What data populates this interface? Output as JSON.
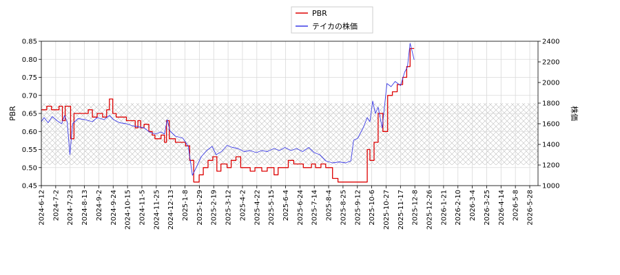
{
  "chart_data": {
    "type": "line",
    "ylabel": "PBR",
    "ylabel_right": "株価",
    "ylim": [
      0.45,
      0.85
    ],
    "ylim_right": [
      1000,
      2400
    ],
    "yticks": [
      "0.45",
      "0.50",
      "0.55",
      "0.60",
      "0.65",
      "0.70",
      "0.75",
      "0.80",
      "0.85"
    ],
    "yticks_right": [
      "1000",
      "1200",
      "1400",
      "1600",
      "1800",
      "2000",
      "2200",
      "2400"
    ],
    "xlim": [
      "2024-06-12",
      "2026-06-12"
    ],
    "xticks": [
      "2024-6-12",
      "2024-7-2",
      "2024-7-23",
      "2024-8-13",
      "2024-9-2",
      "2024-9-24",
      "2024-10-15",
      "2024-11-5",
      "2024-11-25",
      "2024-12-13",
      "2025-1-8",
      "2025-1-29",
      "2025-2-19",
      "2025-3-12",
      "2025-4-2",
      "2025-4-22",
      "2025-5-15",
      "2025-6-4",
      "2025-6-24",
      "2025-7-14",
      "2025-8-4",
      "2025-8-25",
      "2025-9-12",
      "2025-10-6",
      "2025-10-27",
      "2025-11-17",
      "2025-12-8",
      "2025-12-26",
      "2026-1-21",
      "2026-2-10",
      "2026-3-4",
      "2026-3-25",
      "2026-4-14",
      "2026-5-8",
      "2026-5-28"
    ],
    "band_right": [
      1200,
      1800
    ],
    "grid": true,
    "legend_position": "top-center",
    "series": [
      {
        "name": "PBR",
        "axis": "left",
        "color": "#dd0000",
        "step": true,
        "points": [
          [
            "2024-06-12",
            0.66
          ],
          [
            "2024-06-20",
            0.67
          ],
          [
            "2024-06-27",
            0.66
          ],
          [
            "2024-07-08",
            0.67
          ],
          [
            "2024-07-13",
            0.63
          ],
          [
            "2024-07-17",
            0.67
          ],
          [
            "2024-07-25",
            0.58
          ],
          [
            "2024-07-30",
            0.65
          ],
          [
            "2024-08-20",
            0.66
          ],
          [
            "2024-08-26",
            0.64
          ],
          [
            "2024-09-02",
            0.65
          ],
          [
            "2024-09-10",
            0.64
          ],
          [
            "2024-09-16",
            0.66
          ],
          [
            "2024-09-20",
            0.69
          ],
          [
            "2024-09-25",
            0.65
          ],
          [
            "2024-09-30",
            0.64
          ],
          [
            "2024-10-15",
            0.63
          ],
          [
            "2024-10-28",
            0.61
          ],
          [
            "2024-11-01",
            0.63
          ],
          [
            "2024-11-05",
            0.61
          ],
          [
            "2024-11-10",
            0.62
          ],
          [
            "2024-11-17",
            0.6
          ],
          [
            "2024-11-22",
            0.59
          ],
          [
            "2024-11-26",
            0.58
          ],
          [
            "2024-12-05",
            0.59
          ],
          [
            "2024-12-10",
            0.57
          ],
          [
            "2024-12-13",
            0.63
          ],
          [
            "2024-12-17",
            0.58
          ],
          [
            "2024-12-26",
            0.57
          ],
          [
            "2025-01-10",
            0.56
          ],
          [
            "2025-01-16",
            0.52
          ],
          [
            "2025-01-22",
            0.46
          ],
          [
            "2025-01-30",
            0.48
          ],
          [
            "2025-02-05",
            0.5
          ],
          [
            "2025-02-12",
            0.52
          ],
          [
            "2025-02-19",
            0.53
          ],
          [
            "2025-02-25",
            0.49
          ],
          [
            "2025-03-03",
            0.51
          ],
          [
            "2025-03-12",
            0.5
          ],
          [
            "2025-03-18",
            0.52
          ],
          [
            "2025-03-25",
            0.53
          ],
          [
            "2025-04-01",
            0.5
          ],
          [
            "2025-04-15",
            0.49
          ],
          [
            "2025-04-22",
            0.5
          ],
          [
            "2025-05-02",
            0.49
          ],
          [
            "2025-05-10",
            0.5
          ],
          [
            "2025-05-20",
            0.48
          ],
          [
            "2025-05-26",
            0.5
          ],
          [
            "2025-06-10",
            0.52
          ],
          [
            "2025-06-18",
            0.51
          ],
          [
            "2025-07-02",
            0.5
          ],
          [
            "2025-07-14",
            0.51
          ],
          [
            "2025-07-20",
            0.5
          ],
          [
            "2025-07-28",
            0.51
          ],
          [
            "2025-08-04",
            0.5
          ],
          [
            "2025-08-14",
            0.47
          ],
          [
            "2025-08-22",
            0.46
          ],
          [
            "2025-10-04",
            0.55
          ],
          [
            "2025-10-08",
            0.52
          ],
          [
            "2025-10-14",
            0.57
          ],
          [
            "2025-10-20",
            0.65
          ],
          [
            "2025-10-27",
            0.6
          ],
          [
            "2025-11-03",
            0.7
          ],
          [
            "2025-11-10",
            0.71
          ],
          [
            "2025-11-17",
            0.73
          ],
          [
            "2025-11-25",
            0.75
          ],
          [
            "2025-12-01",
            0.78
          ],
          [
            "2025-12-06",
            0.83
          ],
          [
            "2025-12-12",
            0.83
          ]
        ]
      },
      {
        "name": "テイカの株価",
        "axis": "right",
        "color": "#3a3ae6",
        "step": false,
        "points": [
          [
            "2024-06-12",
            1620
          ],
          [
            "2024-06-16",
            1660
          ],
          [
            "2024-06-22",
            1610
          ],
          [
            "2024-06-28",
            1670
          ],
          [
            "2024-07-05",
            1630
          ],
          [
            "2024-07-12",
            1600
          ],
          [
            "2024-07-16",
            1680
          ],
          [
            "2024-07-20",
            1620
          ],
          [
            "2024-07-24",
            1300
          ],
          [
            "2024-07-28",
            1600
          ],
          [
            "2024-08-05",
            1650
          ],
          [
            "2024-08-15",
            1640
          ],
          [
            "2024-08-26",
            1620
          ],
          [
            "2024-09-02",
            1660
          ],
          [
            "2024-09-12",
            1640
          ],
          [
            "2024-09-20",
            1680
          ],
          [
            "2024-09-26",
            1640
          ],
          [
            "2024-10-05",
            1610
          ],
          [
            "2024-10-15",
            1600
          ],
          [
            "2024-10-24",
            1580
          ],
          [
            "2024-11-02",
            1570
          ],
          [
            "2024-11-10",
            1560
          ],
          [
            "2024-11-18",
            1520
          ],
          [
            "2024-11-26",
            1500
          ],
          [
            "2024-12-05",
            1520
          ],
          [
            "2024-12-10",
            1500
          ],
          [
            "2024-12-14",
            1640
          ],
          [
            "2024-12-18",
            1530
          ],
          [
            "2024-12-26",
            1480
          ],
          [
            "2025-01-06",
            1460
          ],
          [
            "2025-01-14",
            1380
          ],
          [
            "2025-01-20",
            1100
          ],
          [
            "2025-01-26",
            1180
          ],
          [
            "2025-02-02",
            1280
          ],
          [
            "2025-02-10",
            1340
          ],
          [
            "2025-02-18",
            1380
          ],
          [
            "2025-02-24",
            1300
          ],
          [
            "2025-03-04",
            1330
          ],
          [
            "2025-03-12",
            1390
          ],
          [
            "2025-03-20",
            1370
          ],
          [
            "2025-03-28",
            1360
          ],
          [
            "2025-04-06",
            1330
          ],
          [
            "2025-04-15",
            1340
          ],
          [
            "2025-04-24",
            1320
          ],
          [
            "2025-05-02",
            1340
          ],
          [
            "2025-05-10",
            1330
          ],
          [
            "2025-05-20",
            1360
          ],
          [
            "2025-05-28",
            1340
          ],
          [
            "2025-06-05",
            1370
          ],
          [
            "2025-06-14",
            1340
          ],
          [
            "2025-06-22",
            1360
          ],
          [
            "2025-07-01",
            1330
          ],
          [
            "2025-07-10",
            1370
          ],
          [
            "2025-07-18",
            1320
          ],
          [
            "2025-07-26",
            1300
          ],
          [
            "2025-08-04",
            1240
          ],
          [
            "2025-08-14",
            1220
          ],
          [
            "2025-08-24",
            1230
          ],
          [
            "2025-09-02",
            1220
          ],
          [
            "2025-09-10",
            1240
          ],
          [
            "2025-09-14",
            1440
          ],
          [
            "2025-09-20",
            1460
          ],
          [
            "2025-09-28",
            1560
          ],
          [
            "2025-10-04",
            1660
          ],
          [
            "2025-10-08",
            1620
          ],
          [
            "2025-10-12",
            1820
          ],
          [
            "2025-10-16",
            1700
          ],
          [
            "2025-10-20",
            1760
          ],
          [
            "2025-10-26",
            1560
          ],
          [
            "2025-11-02",
            1990
          ],
          [
            "2025-11-08",
            1960
          ],
          [
            "2025-11-14",
            2010
          ],
          [
            "2025-11-22",
            1970
          ],
          [
            "2025-11-28",
            2100
          ],
          [
            "2025-12-02",
            2150
          ],
          [
            "2025-12-06",
            2380
          ],
          [
            "2025-12-09",
            2300
          ],
          [
            "2025-12-12",
            2220
          ]
        ]
      }
    ]
  }
}
